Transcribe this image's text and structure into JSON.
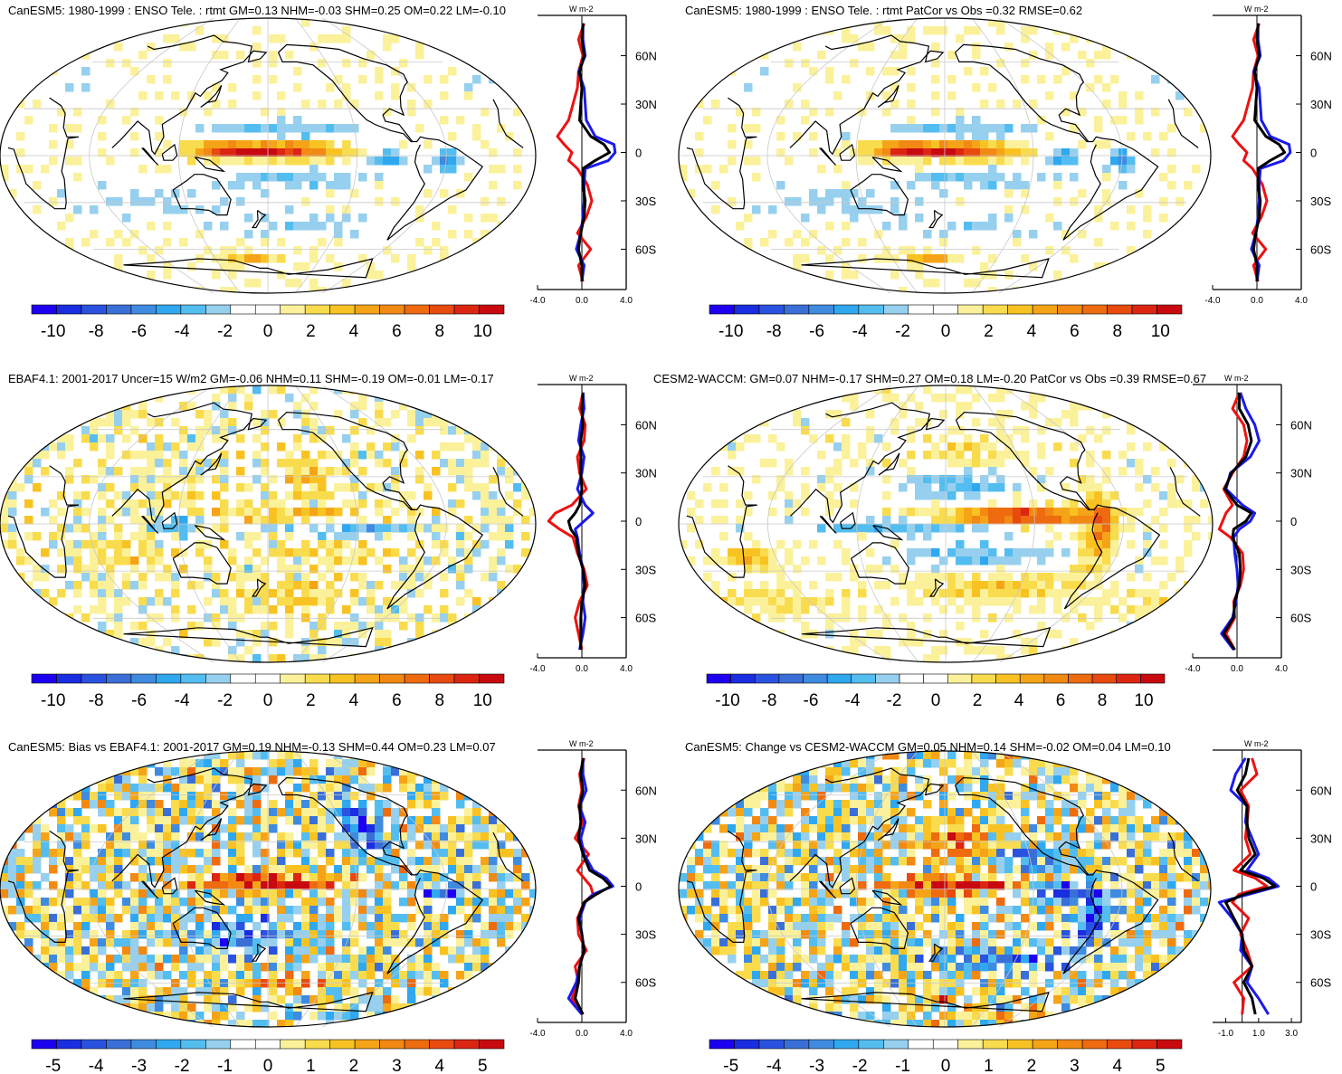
{
  "figure_description": "Six-panel ENSO teleconnection comparison figure (rtmt, W m-2)",
  "colors": {
    "scale": [
      "#1e00f0",
      "#1a2de0",
      "#2a52e0",
      "#3a6fd8",
      "#3f8be0",
      "#2fa8f0",
      "#54bdf0",
      "#96d0ee",
      "#ffffff",
      "#ffffff",
      "#fbf19a",
      "#f9dc4e",
      "#f8c322",
      "#f6a417",
      "#f28913",
      "#ee6b10",
      "#e84a10",
      "#dc2612",
      "#c80a10"
    ],
    "line_red": "#ee1111",
    "line_blue": "#1a1aee",
    "line_black": "#000000",
    "coast": "#000000",
    "grid": "#c8c8c8"
  },
  "chart_data": [
    {
      "type": "heatmap",
      "panel": "top-left",
      "title": "CanESM5: 1980-1999 : ENSO Tele. : rtmt GM=0.13 NHM=-0.03 SHM=0.25 OM=0.22 LM=-0.10",
      "colorbar_ticks": [
        "-10",
        "-8",
        "-6",
        "-4",
        "-2",
        "0",
        "2",
        "4",
        "6",
        "8",
        "10"
      ],
      "colorbar_range": [
        -11,
        11
      ],
      "zonal_profile": {
        "unit": "W m-2",
        "xticks": [
          "-4.0",
          "0.0",
          "4.0"
        ],
        "xrange": [
          -4,
          4
        ],
        "yticks": [
          "60N",
          "30N",
          "0",
          "30S",
          "60S"
        ],
        "lat": [
          80,
          70,
          60,
          50,
          40,
          30,
          20,
          10,
          5,
          0,
          -5,
          -10,
          -20,
          -30,
          -40,
          -50,
          -60,
          -70,
          -80
        ],
        "red": [
          0.2,
          -0.3,
          0.1,
          -0.3,
          -0.4,
          -0.8,
          -1.2,
          -2.2,
          -1.6,
          -0.9,
          -1.2,
          -0.4,
          0.5,
          0.9,
          0.4,
          -0.4,
          0.8,
          -0.3,
          0.1
        ],
        "blue": [
          0.1,
          0.1,
          0.3,
          -0.3,
          0.2,
          0.3,
          0.4,
          1.2,
          2.9,
          3.0,
          2.4,
          0.3,
          0.2,
          0.2,
          0.1,
          -0.1,
          -0.5,
          0.2,
          0.0
        ],
        "black": [
          0.1,
          0.0,
          0.2,
          -0.2,
          0.0,
          -0.1,
          -0.2,
          0.8,
          2.0,
          2.5,
          1.2,
          0.1,
          0.1,
          0.3,
          0.2,
          -0.1,
          -0.3,
          0.0,
          0.0
        ]
      }
    },
    {
      "type": "heatmap",
      "panel": "top-right",
      "title": "CanESM5: 1980-1999 : ENSO Tele. : rtmt PatCor vs Obs =0.32 RMSE=0.62",
      "colorbar_ticks": [
        "-10",
        "-8",
        "-6",
        "-4",
        "-2",
        "0",
        "2",
        "4",
        "6",
        "8",
        "10"
      ],
      "colorbar_range": [
        -11,
        11
      ],
      "zonal_profile": {
        "unit": "W m-2",
        "xticks": [
          "-4.0",
          "0.0",
          "4.0"
        ],
        "xrange": [
          -4,
          4
        ],
        "yticks": [
          "60N",
          "30N",
          "0",
          "30S",
          "60S"
        ],
        "lat": [
          80,
          70,
          60,
          50,
          40,
          30,
          20,
          10,
          5,
          0,
          -5,
          -10,
          -20,
          -30,
          -40,
          -50,
          -60,
          -70,
          -80
        ],
        "red": [
          0.2,
          -0.3,
          0.1,
          -0.3,
          -0.4,
          -0.8,
          -1.2,
          -2.2,
          -1.6,
          -0.9,
          -1.2,
          -0.4,
          0.5,
          0.9,
          0.4,
          -0.4,
          0.8,
          -0.3,
          0.1
        ],
        "blue": [
          0.1,
          0.1,
          0.3,
          -0.3,
          0.2,
          0.3,
          0.4,
          1.2,
          2.9,
          3.0,
          2.4,
          0.3,
          0.2,
          0.2,
          0.1,
          -0.1,
          -0.5,
          0.2,
          0.0
        ],
        "black": [
          0.1,
          0.0,
          0.2,
          -0.2,
          0.0,
          -0.1,
          -0.2,
          0.8,
          2.0,
          2.5,
          1.2,
          0.1,
          0.1,
          0.3,
          0.2,
          -0.1,
          -0.3,
          0.0,
          0.0
        ]
      }
    },
    {
      "type": "heatmap",
      "panel": "middle-left",
      "title": "EBAF4.1: 2001-2017 Uncer=15 W/m2 GM=-0.06 NHM=0.11 SHM=-0.19 OM=-0.01 LM=-0.17",
      "colorbar_ticks": [
        "-10",
        "-8",
        "-6",
        "-4",
        "-2",
        "0",
        "2",
        "4",
        "6",
        "8",
        "10"
      ],
      "colorbar_range": [
        -11,
        11
      ],
      "zonal_profile": {
        "unit": "W m-2",
        "xticks": [
          "-4.0",
          "0.0",
          "4.0"
        ],
        "xrange": [
          -4,
          4
        ],
        "yticks": [
          "60N",
          "30N",
          "0",
          "30S",
          "60S"
        ],
        "lat": [
          80,
          70,
          60,
          50,
          40,
          30,
          20,
          10,
          5,
          0,
          -5,
          -10,
          -20,
          -30,
          -40,
          -50,
          -60,
          -70,
          -80
        ],
        "red": [
          0.1,
          -0.2,
          0.3,
          0.2,
          -0.4,
          -0.2,
          0.4,
          -0.9,
          -2.4,
          -3.0,
          -2.0,
          -0.8,
          -0.4,
          0.2,
          0.5,
          -0.2,
          -0.6,
          -0.3,
          0.0
        ],
        "blue": [
          0.1,
          0.2,
          -0.1,
          -0.3,
          0.2,
          0.0,
          -0.4,
          0.3,
          1.0,
          0.2,
          -0.6,
          -0.4,
          -0.2,
          0.1,
          0.2,
          0.1,
          0.3,
          0.1,
          -0.2
        ],
        "black": [
          0.1,
          0.0,
          0.1,
          -0.1,
          -0.1,
          -0.1,
          0.0,
          -0.2,
          -0.6,
          -1.2,
          -1.0,
          -0.5,
          -0.3,
          0.1,
          0.3,
          0.0,
          -0.1,
          -0.1,
          -0.1
        ]
      }
    },
    {
      "type": "heatmap",
      "panel": "middle-right",
      "title": "CESM2-WACCM: GM=0.07 NHM=-0.17 SHM=0.27 OM=0.18 LM=-0.20 PatCor vs Obs =0.39 RMSE=0.67",
      "colorbar_ticks": [
        "-10",
        "-8",
        "-6",
        "-4",
        "-2",
        "0",
        "2",
        "4",
        "6",
        "8",
        "10"
      ],
      "colorbar_range": [
        -11,
        11
      ],
      "zonal_profile": {
        "unit": "W m-2",
        "xticks": [
          "-4.0",
          "0.0",
          "4.0"
        ],
        "xrange": [
          -4,
          4
        ],
        "yticks": [
          "60N",
          "30N",
          "0",
          "30S",
          "60S"
        ],
        "lat": [
          80,
          70,
          60,
          50,
          40,
          30,
          20,
          10,
          5,
          0,
          -5,
          -10,
          -20,
          -30,
          -40,
          -50,
          -60,
          -70,
          -80
        ],
        "red": [
          0.2,
          -0.4,
          0.6,
          0.9,
          0.6,
          -0.4,
          -1.2,
          -0.4,
          -1.0,
          -1.3,
          -1.6,
          -0.6,
          0.5,
          0.6,
          0.3,
          -0.3,
          -0.2,
          -1.0,
          -0.2
        ],
        "blue": [
          0.3,
          0.8,
          1.6,
          2.0,
          1.2,
          -0.6,
          -1.0,
          0.5,
          1.6,
          1.2,
          0.2,
          -0.3,
          -0.2,
          0.0,
          0.1,
          -0.1,
          -0.4,
          -1.4,
          -0.3
        ],
        "black": [
          0.2,
          0.2,
          1.0,
          1.3,
          0.8,
          -0.5,
          -1.1,
          0.0,
          1.3,
          0.8,
          -0.3,
          -0.4,
          0.2,
          0.3,
          0.2,
          -0.2,
          -0.3,
          -1.2,
          -0.2
        ]
      }
    },
    {
      "type": "heatmap",
      "panel": "bottom-left",
      "title": "CanESM5: Bias vs EBAF4.1: 2001-2017 GM=0.19 NHM=-0.13 SHM=0.44 OM=0.23 LM=0.07",
      "colorbar_ticks": [
        "-5",
        "-4",
        "-3",
        "-2",
        "-1",
        "0",
        "1",
        "2",
        "3",
        "4",
        "5"
      ],
      "colorbar_range": [
        -5.5,
        5.5
      ],
      "zonal_profile": {
        "unit": "W m-2",
        "xticks": [
          "-4.0",
          "0.0",
          "4.0"
        ],
        "xrange": [
          -4,
          4
        ],
        "yticks": [
          "60N",
          "30N",
          "0",
          "30S",
          "60S"
        ],
        "lat": [
          80,
          70,
          60,
          50,
          40,
          30,
          20,
          10,
          5,
          0,
          -5,
          -10,
          -20,
          -30,
          -40,
          -50,
          -60,
          -70,
          -80
        ],
        "red": [
          0.2,
          -0.2,
          0.0,
          -0.3,
          0.1,
          -0.6,
          0.6,
          -0.4,
          0.2,
          0.8,
          1.0,
          0.2,
          -0.4,
          -0.3,
          0.4,
          -0.6,
          -0.3,
          -0.9,
          0.1
        ],
        "blue": [
          0.1,
          0.1,
          0.4,
          -0.2,
          0.3,
          -0.1,
          0.2,
          1.0,
          2.2,
          2.8,
          1.0,
          0.3,
          -0.2,
          0.0,
          0.2,
          -0.2,
          -0.5,
          -1.2,
          0.0
        ],
        "black": [
          0.1,
          -0.1,
          0.1,
          -0.2,
          -0.1,
          -0.3,
          0.1,
          0.7,
          1.9,
          2.6,
          1.3,
          0.2,
          -0.3,
          0.0,
          0.2,
          -0.2,
          -0.3,
          -0.6,
          0.1
        ]
      }
    },
    {
      "type": "heatmap",
      "panel": "bottom-right",
      "title": "CanESM5: Change vs CESM2-WACCM GM=0.05 NHM=0.14 SHM=-0.02 OM=0.04 LM=0.10",
      "colorbar_ticks": [
        "-5",
        "-4",
        "-3",
        "-2",
        "-1",
        "0",
        "1",
        "2",
        "3",
        "4",
        "5"
      ],
      "colorbar_range": [
        -5.5,
        5.5
      ],
      "zonal_profile": {
        "unit": "W m-2",
        "xticks": [
          "-1.0",
          "1.0",
          "3.0"
        ],
        "xrange": [
          -1.8,
          3.6
        ],
        "yticks": [
          "60N",
          "30N",
          "0",
          "30S",
          "60S"
        ],
        "lat": [
          80,
          70,
          60,
          50,
          40,
          30,
          20,
          10,
          5,
          0,
          -5,
          -10,
          -20,
          -30,
          -40,
          -50,
          -60,
          -70,
          -80
        ],
        "red": [
          0.6,
          0.9,
          -0.1,
          0.4,
          0.3,
          0.2,
          0.5,
          -0.5,
          0.8,
          1.5,
          -0.2,
          -0.6,
          0.4,
          -0.1,
          0.3,
          0.6,
          -0.5,
          0.1,
          0.0
        ],
        "blue": [
          0.2,
          -0.4,
          -0.7,
          0.3,
          0.2,
          0.6,
          1.0,
          0.3,
          1.6,
          2.2,
          0.4,
          -1.4,
          -0.6,
          0.0,
          -0.1,
          0.6,
          0.3,
          1.0,
          1.6
        ],
        "black": [
          0.4,
          0.2,
          -0.3,
          0.3,
          0.3,
          0.4,
          0.8,
          -0.1,
          1.3,
          2.0,
          0.1,
          -1.0,
          -0.5,
          0.0,
          0.1,
          0.6,
          0.1,
          0.6,
          0.8
        ]
      }
    }
  ]
}
